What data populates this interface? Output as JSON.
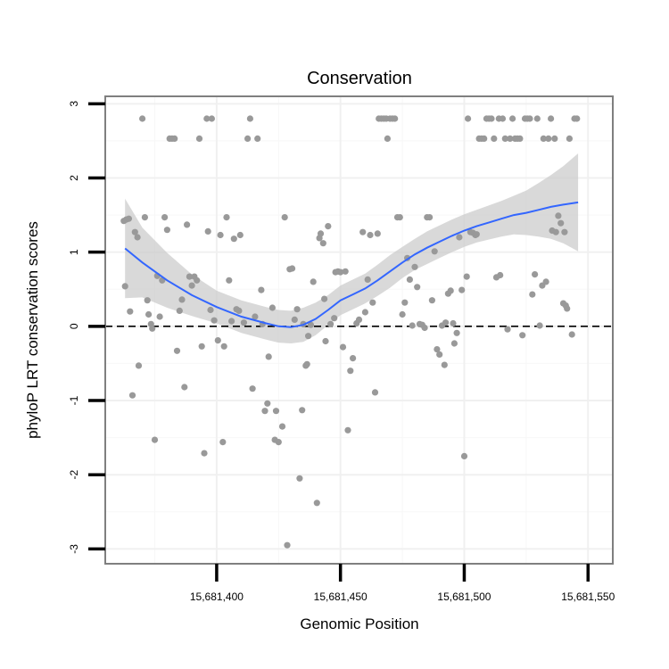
{
  "chart_data": {
    "type": "scatter",
    "title": "Conservation",
    "xlabel": "Genomic Position",
    "ylabel": "phyloP LRT conservation scores",
    "xlim": [
      15681355,
      15681560
    ],
    "ylim": [
      -3.2,
      3.1
    ],
    "x_ticks": [
      {
        "value": 15681400,
        "label": "15,681,400"
      },
      {
        "value": 15681450,
        "label": "15,681,450"
      },
      {
        "value": 15681500,
        "label": "15,681,500"
      },
      {
        "value": 15681550,
        "label": "15,681,550"
      }
    ],
    "y_ticks": [
      {
        "value": 3,
        "label": "3"
      },
      {
        "value": 2,
        "label": "2"
      },
      {
        "value": 1,
        "label": "1"
      },
      {
        "value": 0,
        "label": "0"
      },
      {
        "value": -1,
        "label": "-1"
      },
      {
        "value": -2,
        "label": "-2"
      },
      {
        "value": -3,
        "label": "-3"
      }
    ],
    "grid": true,
    "reference_line": {
      "y": 0,
      "style": "dashed"
    },
    "colors": {
      "points": "#999999",
      "smooth": "#3366ff",
      "band": "#cccccc",
      "panel_border": "#7f7f7f"
    },
    "points": [
      [
        15681362.5,
        1.42
      ],
      [
        15681363.5,
        1.44
      ],
      [
        15681364.5,
        1.45
      ],
      [
        15681363.0,
        0.54
      ],
      [
        15681365.0,
        0.2
      ],
      [
        15681366.0,
        -0.93
      ],
      [
        15681367.0,
        1.27
      ],
      [
        15681368.0,
        1.2
      ],
      [
        15681368.5,
        -0.53
      ],
      [
        15681370.0,
        2.8
      ],
      [
        15681371.0,
        1.47
      ],
      [
        15681372.0,
        0.35
      ],
      [
        15681372.5,
        0.16
      ],
      [
        15681373.5,
        0.03
      ],
      [
        15681374.0,
        -0.03
      ],
      [
        15681375.0,
        -1.53
      ],
      [
        15681376.0,
        0.68
      ],
      [
        15681377.0,
        0.13
      ],
      [
        15681378.0,
        0.62
      ],
      [
        15681379.0,
        1.47
      ],
      [
        15681380.0,
        1.3
      ],
      [
        15681381.0,
        2.53
      ],
      [
        15681382.0,
        2.53
      ],
      [
        15681383.0,
        2.53
      ],
      [
        15681384.0,
        -0.33
      ],
      [
        15681385.0,
        0.21
      ],
      [
        15681386.0,
        0.36
      ],
      [
        15681387.0,
        -0.82
      ],
      [
        15681388.0,
        1.37
      ],
      [
        15681389.0,
        0.67
      ],
      [
        15681390.0,
        0.55
      ],
      [
        15681391.0,
        0.67
      ],
      [
        15681392.0,
        0.62
      ],
      [
        15681393.0,
        2.53
      ],
      [
        15681394.0,
        -0.27
      ],
      [
        15681395.0,
        -1.71
      ],
      [
        15681396.0,
        2.8
      ],
      [
        15681396.5,
        1.28
      ],
      [
        15681397.5,
        0.22
      ],
      [
        15681398.0,
        2.8
      ],
      [
        15681399.0,
        0.08
      ],
      [
        15681400.5,
        -0.19
      ],
      [
        15681401.5,
        1.23
      ],
      [
        15681402.5,
        -1.56
      ],
      [
        15681403.0,
        -0.27
      ],
      [
        15681404.0,
        1.47
      ],
      [
        15681405.0,
        0.62
      ],
      [
        15681406.0,
        0.07
      ],
      [
        15681407.0,
        1.18
      ],
      [
        15681408.0,
        0.23
      ],
      [
        15681409.0,
        0.21
      ],
      [
        15681409.5,
        1.23
      ],
      [
        15681411.0,
        0.05
      ],
      [
        15681412.5,
        2.53
      ],
      [
        15681413.5,
        2.8
      ],
      [
        15681414.5,
        -0.84
      ],
      [
        15681415.5,
        0.13
      ],
      [
        15681416.5,
        2.53
      ],
      [
        15681418.0,
        0.49
      ],
      [
        15681418.5,
        0.03
      ],
      [
        15681419.5,
        -1.14
      ],
      [
        15681420.5,
        -1.04
      ],
      [
        15681421.0,
        -0.41
      ],
      [
        15681422.5,
        0.25
      ],
      [
        15681423.5,
        -1.53
      ],
      [
        15681424.0,
        -1.14
      ],
      [
        15681425.0,
        -1.56
      ],
      [
        15681426.5,
        -1.35
      ],
      [
        15681427.5,
        1.47
      ],
      [
        15681428.5,
        -2.95
      ],
      [
        15681429.5,
        0.77
      ],
      [
        15681430.5,
        0.78
      ],
      [
        15681431.5,
        0.09
      ],
      [
        15681432.5,
        0.23
      ],
      [
        15681433.5,
        -2.05
      ],
      [
        15681434.5,
        -1.13
      ],
      [
        15681435.0,
        0.03
      ],
      [
        15681436.0,
        -0.53
      ],
      [
        15681436.5,
        -0.51
      ],
      [
        15681437.0,
        -0.13
      ],
      [
        15681438.0,
        0.02
      ],
      [
        15681439.0,
        0.6
      ],
      [
        15681440.5,
        -2.38
      ],
      [
        15681441.5,
        1.19
      ],
      [
        15681442.0,
        1.25
      ],
      [
        15681443.0,
        1.12
      ],
      [
        15681443.5,
        0.37
      ],
      [
        15681444.0,
        -0.2
      ],
      [
        15681445.0,
        1.35
      ],
      [
        15681446.0,
        0.03
      ],
      [
        15681447.5,
        0.11
      ],
      [
        15681448.0,
        0.73
      ],
      [
        15681449.0,
        0.74
      ],
      [
        15681450.0,
        0.73
      ],
      [
        15681451.0,
        -0.28
      ],
      [
        15681452.0,
        0.74
      ],
      [
        15681453.0,
        -1.4
      ],
      [
        15681454.0,
        -0.6
      ],
      [
        15681455.0,
        -0.43
      ],
      [
        15681456.5,
        0.04
      ],
      [
        15681457.5,
        0.09
      ],
      [
        15681459.0,
        1.27
      ],
      [
        15681460.0,
        0.19
      ],
      [
        15681461.0,
        0.63
      ],
      [
        15681462.0,
        1.23
      ],
      [
        15681463.0,
        0.32
      ],
      [
        15681464.0,
        -0.89
      ],
      [
        15681465.0,
        1.25
      ],
      [
        15681465.5,
        2.8
      ],
      [
        15681466.5,
        2.8
      ],
      [
        15681467.5,
        2.8
      ],
      [
        15681468.5,
        2.8
      ],
      [
        15681469.0,
        2.53
      ],
      [
        15681470.0,
        2.8
      ],
      [
        15681471.0,
        2.8
      ],
      [
        15681472.0,
        2.8
      ],
      [
        15681473.0,
        1.47
      ],
      [
        15681474.0,
        1.47
      ],
      [
        15681475.0,
        0.16
      ],
      [
        15681476.0,
        0.32
      ],
      [
        15681477.0,
        0.92
      ],
      [
        15681478.0,
        0.63
      ],
      [
        15681479.0,
        0.01
      ],
      [
        15681480.0,
        0.8
      ],
      [
        15681481.0,
        0.53
      ],
      [
        15681482.0,
        0.03
      ],
      [
        15681483.0,
        0.02
      ],
      [
        15681484.0,
        -0.02
      ],
      [
        15681485.0,
        1.47
      ],
      [
        15681486.0,
        1.47
      ],
      [
        15681487.0,
        0.35
      ],
      [
        15681488.0,
        1.01
      ],
      [
        15681489.0,
        -0.31
      ],
      [
        15681490.0,
        -0.38
      ],
      [
        15681491.0,
        0.01
      ],
      [
        15681492.0,
        -0.52
      ],
      [
        15681492.5,
        0.05
      ],
      [
        15681493.5,
        0.44
      ],
      [
        15681494.5,
        0.48
      ],
      [
        15681495.5,
        0.04
      ],
      [
        15681496.0,
        -0.23
      ],
      [
        15681497.0,
        -0.09
      ],
      [
        15681498.0,
        1.2
      ],
      [
        15681499.0,
        0.49
      ],
      [
        15681500.0,
        -1.75
      ],
      [
        15681501.0,
        0.67
      ],
      [
        15681501.5,
        2.8
      ],
      [
        15681502.5,
        1.27
      ],
      [
        15681503.5,
        1.26
      ],
      [
        15681504.5,
        1.23
      ],
      [
        15681505.0,
        1.24
      ],
      [
        15681506.0,
        2.53
      ],
      [
        15681507.0,
        2.53
      ],
      [
        15681508.0,
        2.53
      ],
      [
        15681509.0,
        2.8
      ],
      [
        15681510.0,
        2.8
      ],
      [
        15681511.0,
        2.8
      ],
      [
        15681512.0,
        2.53
      ],
      [
        15681513.0,
        0.66
      ],
      [
        15681514.0,
        2.8
      ],
      [
        15681514.5,
        0.69
      ],
      [
        15681515.5,
        2.8
      ],
      [
        15681516.5,
        2.53
      ],
      [
        15681517.5,
        -0.04
      ],
      [
        15681518.5,
        2.53
      ],
      [
        15681519.5,
        2.8
      ],
      [
        15681520.5,
        2.53
      ],
      [
        15681521.5,
        2.53
      ],
      [
        15681522.5,
        2.53
      ],
      [
        15681523.5,
        -0.12
      ],
      [
        15681524.5,
        2.8
      ],
      [
        15681525.5,
        2.8
      ],
      [
        15681526.5,
        2.8
      ],
      [
        15681527.5,
        0.43
      ],
      [
        15681528.5,
        0.7
      ],
      [
        15681529.5,
        2.8
      ],
      [
        15681530.5,
        0.01
      ],
      [
        15681531.5,
        0.55
      ],
      [
        15681532.0,
        2.53
      ],
      [
        15681533.0,
        0.6
      ],
      [
        15681534.0,
        2.53
      ],
      [
        15681535.0,
        2.8
      ],
      [
        15681535.5,
        1.29
      ],
      [
        15681536.5,
        2.53
      ],
      [
        15681537.0,
        1.27
      ],
      [
        15681538.0,
        1.49
      ],
      [
        15681539.0,
        1.39
      ],
      [
        15681540.0,
        0.31
      ],
      [
        15681540.5,
        1.27
      ],
      [
        15681541.5,
        0.24
      ],
      [
        15681542.5,
        2.53
      ],
      [
        15681543.5,
        -0.11
      ],
      [
        15681544.5,
        2.8
      ],
      [
        15681545.5,
        2.8
      ],
      [
        15681541.0,
        0.28
      ]
    ],
    "smooth_line": {
      "method": "loess",
      "points": [
        [
          15681363,
          1.05
        ],
        [
          15681370,
          0.86
        ],
        [
          15681380,
          0.62
        ],
        [
          15681390,
          0.42
        ],
        [
          15681400,
          0.26
        ],
        [
          15681410,
          0.13
        ],
        [
          15681420,
          0.04
        ],
        [
          15681425,
          0.0
        ],
        [
          15681430,
          -0.01
        ],
        [
          15681435,
          0.02
        ],
        [
          15681440,
          0.1
        ],
        [
          15681445,
          0.22
        ],
        [
          15681450,
          0.35
        ],
        [
          15681455,
          0.43
        ],
        [
          15681460,
          0.51
        ],
        [
          15681465,
          0.62
        ],
        [
          15681470,
          0.74
        ],
        [
          15681475,
          0.86
        ],
        [
          15681480,
          0.97
        ],
        [
          15681485,
          1.06
        ],
        [
          15681490,
          1.14
        ],
        [
          15681495,
          1.22
        ],
        [
          15681500,
          1.29
        ],
        [
          15681505,
          1.35
        ],
        [
          15681510,
          1.4
        ],
        [
          15681515,
          1.45
        ],
        [
          15681520,
          1.5
        ],
        [
          15681525,
          1.53
        ],
        [
          15681530,
          1.57
        ],
        [
          15681535,
          1.61
        ],
        [
          15681540,
          1.64
        ],
        [
          15681546,
          1.67
        ]
      ],
      "band_upper": [
        [
          15681363,
          1.72
        ],
        [
          15681370,
          1.33
        ],
        [
          15681380,
          0.99
        ],
        [
          15681390,
          0.7
        ],
        [
          15681400,
          0.48
        ],
        [
          15681410,
          0.35
        ],
        [
          15681420,
          0.26
        ],
        [
          15681425,
          0.22
        ],
        [
          15681430,
          0.21
        ],
        [
          15681435,
          0.25
        ],
        [
          15681440,
          0.32
        ],
        [
          15681445,
          0.42
        ],
        [
          15681450,
          0.55
        ],
        [
          15681455,
          0.63
        ],
        [
          15681460,
          0.71
        ],
        [
          15681465,
          0.83
        ],
        [
          15681470,
          0.96
        ],
        [
          15681475,
          1.07
        ],
        [
          15681480,
          1.18
        ],
        [
          15681485,
          1.28
        ],
        [
          15681490,
          1.36
        ],
        [
          15681495,
          1.44
        ],
        [
          15681500,
          1.51
        ],
        [
          15681505,
          1.57
        ],
        [
          15681510,
          1.63
        ],
        [
          15681515,
          1.69
        ],
        [
          15681520,
          1.76
        ],
        [
          15681525,
          1.83
        ],
        [
          15681530,
          1.93
        ],
        [
          15681535,
          2.04
        ],
        [
          15681540,
          2.16
        ],
        [
          15681546,
          2.33
        ]
      ],
      "band_lower": [
        [
          15681363,
          0.38
        ],
        [
          15681370,
          0.39
        ],
        [
          15681380,
          0.25
        ],
        [
          15681390,
          0.14
        ],
        [
          15681400,
          0.04
        ],
        [
          15681410,
          -0.09
        ],
        [
          15681420,
          -0.18
        ],
        [
          15681425,
          -0.22
        ],
        [
          15681430,
          -0.23
        ],
        [
          15681435,
          -0.21
        ],
        [
          15681440,
          -0.12
        ],
        [
          15681445,
          0.02
        ],
        [
          15681450,
          0.15
        ],
        [
          15681455,
          0.23
        ],
        [
          15681460,
          0.31
        ],
        [
          15681465,
          0.41
        ],
        [
          15681470,
          0.52
        ],
        [
          15681475,
          0.65
        ],
        [
          15681480,
          0.76
        ],
        [
          15681485,
          0.84
        ],
        [
          15681490,
          0.92
        ],
        [
          15681495,
          1.0
        ],
        [
          15681500,
          1.07
        ],
        [
          15681505,
          1.13
        ],
        [
          15681510,
          1.17
        ],
        [
          15681515,
          1.21
        ],
        [
          15681520,
          1.24
        ],
        [
          15681525,
          1.23
        ],
        [
          15681530,
          1.21
        ],
        [
          15681535,
          1.18
        ],
        [
          15681540,
          1.12
        ],
        [
          15681546,
          1.01
        ]
      ]
    }
  }
}
